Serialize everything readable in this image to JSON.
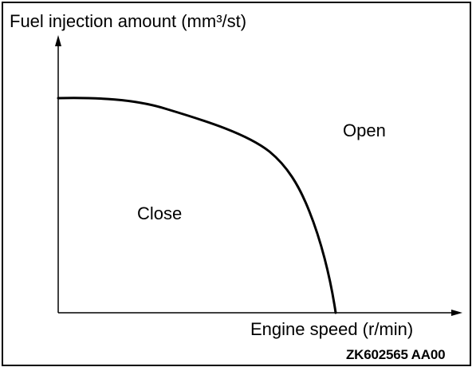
{
  "diagram": {
    "y_axis_label": "Fuel injection amount (mm³/st)",
    "x_axis_label": "Engine speed (r/min)",
    "region_below_curve": "Close",
    "region_above_curve": "Open",
    "figure_code": "ZK602565 AA00"
  },
  "colors": {
    "line": "#000000",
    "background": "#ffffff"
  }
}
